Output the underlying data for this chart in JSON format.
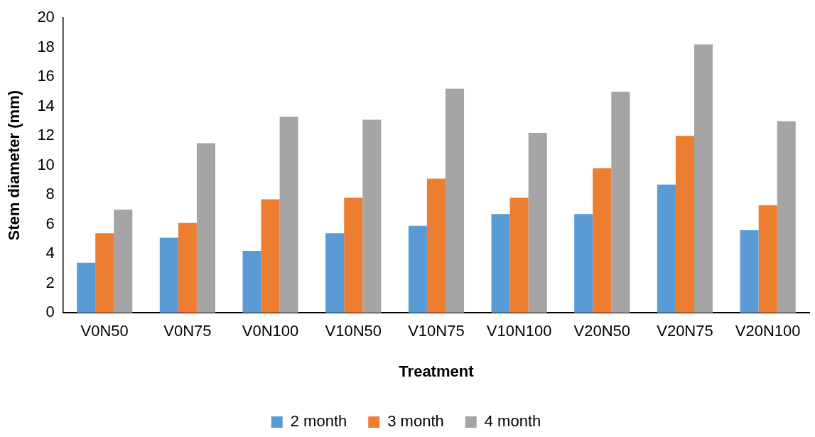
{
  "chart_data": {
    "type": "bar",
    "xlabel": "Treatment",
    "ylabel": "Stem diameter (mm)",
    "categories": [
      "V0N50",
      "V0N75",
      "V0N100",
      "V10N50",
      "V10N75",
      "V10N100",
      "V20N50",
      "V20N75",
      "V20N100"
    ],
    "series": [
      {
        "name": "2 month",
        "color": "#5b9bd5",
        "values": [
          3.4,
          5.1,
          4.2,
          5.4,
          5.9,
          6.7,
          6.7,
          8.7,
          5.6
        ]
      },
      {
        "name": "3 month",
        "color": "#ed7d31",
        "values": [
          5.4,
          6.1,
          7.7,
          7.8,
          9.1,
          7.8,
          9.8,
          12.0,
          7.3
        ]
      },
      {
        "name": "4 month",
        "color": "#a5a5a5",
        "values": [
          7.0,
          11.5,
          13.3,
          13.1,
          15.2,
          12.2,
          15.0,
          18.2,
          13.0
        ]
      }
    ],
    "ylim": [
      0,
      20
    ],
    "yticks": [
      0,
      2,
      4,
      6,
      8,
      10,
      12,
      14,
      16,
      18,
      20
    ],
    "grid": false,
    "legend": "bottom"
  }
}
